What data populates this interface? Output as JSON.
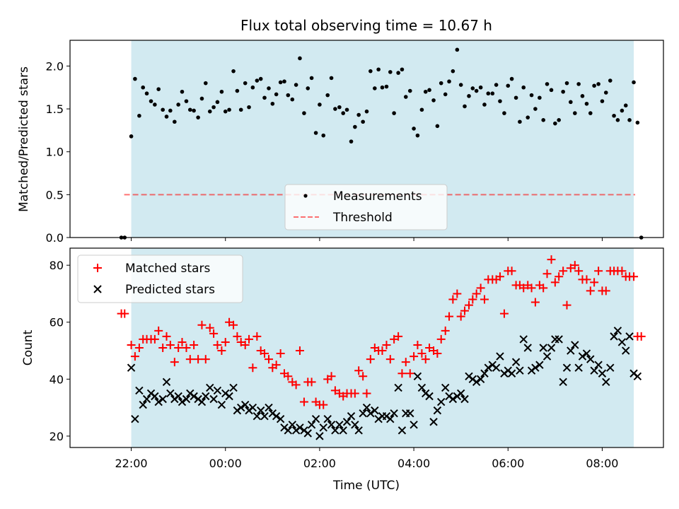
{
  "figure": {
    "title": "Flux total observing time = 10.67 h",
    "xlabel": "Time (UTC)",
    "x_tick_labels": [
      "22:00",
      "00:00",
      "02:00",
      "04:00",
      "06:00",
      "08:00"
    ],
    "x_ticks_hours": [
      22,
      24,
      26,
      28,
      30,
      32
    ],
    "xlim_hours": [
      20.7,
      33.3
    ],
    "observing_window_hours": [
      22.0,
      32.67
    ],
    "colors": {
      "band": "#add8e6",
      "matched": "#ff0000",
      "predicted": "#000000",
      "threshold": "#ff0000",
      "measurement": "#000000"
    }
  },
  "chart_data": [
    {
      "type": "scatter",
      "ylabel": "Matched/Predicted stars",
      "ylim": [
        0,
        2.3
      ],
      "y_ticks": [
        0.0,
        0.5,
        1.0,
        1.5,
        2.0
      ],
      "y_tick_labels": [
        "0.0",
        "0.5",
        "1.0",
        "1.5",
        "2.0"
      ],
      "legend": {
        "placement": "lower center",
        "entries": [
          "Measurements",
          "Threshold"
        ]
      },
      "threshold": {
        "name": "Threshold",
        "value": 0.5,
        "x_range": [
          21.85,
          32.7
        ]
      },
      "series": [
        {
          "name": "Measurements",
          "x": [
            21.79,
            21.86,
            22.0,
            22.08,
            22.17,
            22.25,
            22.33,
            22.42,
            22.5,
            22.58,
            22.67,
            22.75,
            22.83,
            22.92,
            23.0,
            23.08,
            23.17,
            23.25,
            23.33,
            23.42,
            23.5,
            23.58,
            23.67,
            23.75,
            23.83,
            23.92,
            24.0,
            24.08,
            24.17,
            24.25,
            24.33,
            24.42,
            24.5,
            24.58,
            24.67,
            24.75,
            24.83,
            24.92,
            25.0,
            25.08,
            25.17,
            25.25,
            25.33,
            25.42,
            25.5,
            25.58,
            25.67,
            25.75,
            25.83,
            25.92,
            26.0,
            26.08,
            26.17,
            26.25,
            26.33,
            26.42,
            26.5,
            26.58,
            26.67,
            26.75,
            26.83,
            26.92,
            27.0,
            27.08,
            27.17,
            27.25,
            27.33,
            27.42,
            27.5,
            27.58,
            27.67,
            27.75,
            27.83,
            27.92,
            28.0,
            28.08,
            28.17,
            28.25,
            28.33,
            28.42,
            28.5,
            28.58,
            28.67,
            28.75,
            28.83,
            28.92,
            29.0,
            29.08,
            29.17,
            29.25,
            29.33,
            29.42,
            29.5,
            29.58,
            29.67,
            29.75,
            29.83,
            29.92,
            30.0,
            30.08,
            30.17,
            30.25,
            30.33,
            30.42,
            30.5,
            30.58,
            30.67,
            30.75,
            30.83,
            30.92,
            31.0,
            31.08,
            31.17,
            31.25,
            31.33,
            31.42,
            31.5,
            31.58,
            31.67,
            31.75,
            31.83,
            31.92,
            32.0,
            32.08,
            32.17,
            32.25,
            32.33,
            32.42,
            32.5,
            32.58,
            32.67,
            32.75,
            32.83
          ],
          "y": [
            0.0,
            0.0,
            1.18,
            1.85,
            1.42,
            1.75,
            1.68,
            1.59,
            1.55,
            1.73,
            1.49,
            1.41,
            1.48,
            1.35,
            1.55,
            1.7,
            1.59,
            1.49,
            1.48,
            1.4,
            1.62,
            1.8,
            1.47,
            1.52,
            1.58,
            1.7,
            1.47,
            1.49,
            1.94,
            1.71,
            1.49,
            1.8,
            1.52,
            1.75,
            1.83,
            1.85,
            1.63,
            1.74,
            1.56,
            1.67,
            1.81,
            1.82,
            1.66,
            1.61,
            1.78,
            2.09,
            1.45,
            1.74,
            1.86,
            1.22,
            1.55,
            1.19,
            1.66,
            1.86,
            1.5,
            1.52,
            1.45,
            1.49,
            1.12,
            1.29,
            1.43,
            1.35,
            1.47,
            1.94,
            1.74,
            1.96,
            1.75,
            1.76,
            1.93,
            1.45,
            1.92,
            1.96,
            1.64,
            1.71,
            1.27,
            1.19,
            1.49,
            1.7,
            1.72,
            1.6,
            1.3,
            1.8,
            1.67,
            1.82,
            1.94,
            2.19,
            1.78,
            1.53,
            1.65,
            1.74,
            1.71,
            1.75,
            1.55,
            1.68,
            1.68,
            1.78,
            1.59,
            1.45,
            1.77,
            1.85,
            1.63,
            1.35,
            1.75,
            1.4,
            1.66,
            1.5,
            1.63,
            1.37,
            1.79,
            1.72,
            1.33,
            1.37,
            1.7,
            1.8,
            1.58,
            1.45,
            1.79,
            1.65,
            1.56,
            1.45,
            1.77,
            1.79,
            1.59,
            1.69,
            1.83,
            1.42,
            1.37,
            1.48,
            1.54,
            1.37,
            1.81,
            1.34,
            0.0
          ]
        }
      ]
    },
    {
      "type": "scatter",
      "ylabel": "Count",
      "ylim": [
        16,
        86
      ],
      "y_ticks": [
        20,
        40,
        60,
        80
      ],
      "y_tick_labels": [
        "20",
        "40",
        "60",
        "80"
      ],
      "legend": {
        "placement": "upper left",
        "entries": [
          "Matched stars",
          "Predicted stars"
        ]
      },
      "series": [
        {
          "name": "Matched stars",
          "marker": "+",
          "x": [
            21.79,
            21.86,
            22.0,
            22.08,
            22.17,
            22.25,
            22.33,
            22.42,
            22.5,
            22.58,
            22.67,
            22.75,
            22.83,
            22.92,
            23.0,
            23.08,
            23.17,
            23.25,
            23.33,
            23.42,
            23.5,
            23.58,
            23.67,
            23.75,
            23.83,
            23.92,
            24.0,
            24.08,
            24.17,
            24.25,
            24.33,
            24.42,
            24.5,
            24.58,
            24.67,
            24.75,
            24.83,
            24.92,
            25.0,
            25.08,
            25.17,
            25.25,
            25.33,
            25.42,
            25.5,
            25.58,
            25.67,
            25.75,
            25.83,
            25.92,
            26.0,
            26.08,
            26.17,
            26.25,
            26.33,
            26.42,
            26.5,
            26.58,
            26.67,
            26.75,
            26.83,
            26.92,
            27.0,
            27.08,
            27.17,
            27.25,
            27.33,
            27.42,
            27.5,
            27.58,
            27.67,
            27.75,
            27.83,
            27.92,
            28.0,
            28.08,
            28.17,
            28.25,
            28.33,
            28.42,
            28.5,
            28.58,
            28.67,
            28.75,
            28.83,
            28.92,
            29.0,
            29.08,
            29.17,
            29.25,
            29.33,
            29.42,
            29.5,
            29.58,
            29.67,
            29.75,
            29.83,
            29.92,
            30.0,
            30.08,
            30.17,
            30.25,
            30.33,
            30.42,
            30.5,
            30.58,
            30.67,
            30.75,
            30.83,
            30.92,
            31.0,
            31.08,
            31.17,
            31.25,
            31.33,
            31.42,
            31.5,
            31.58,
            31.67,
            31.75,
            31.83,
            31.92,
            32.0,
            32.08,
            32.17,
            32.25,
            32.33,
            32.42,
            32.5,
            32.58,
            32.67,
            32.75,
            32.83
          ],
          "y": [
            63,
            63,
            52,
            48,
            51,
            54,
            54,
            54,
            54,
            57,
            51,
            55,
            52,
            46,
            51,
            53,
            51,
            47,
            52,
            47,
            59,
            47,
            58,
            56,
            52,
            50,
            53,
            60,
            59,
            55,
            53,
            52,
            54,
            44,
            55,
            50,
            49,
            47,
            44,
            45,
            49,
            42,
            41,
            39,
            38,
            50,
            32,
            39,
            39,
            32,
            31,
            31,
            40,
            41,
            36,
            35,
            34,
            35,
            35,
            35,
            43,
            41,
            35,
            47,
            51,
            50,
            50,
            52,
            47,
            54,
            55,
            42,
            46,
            42,
            48,
            52,
            49,
            47,
            51,
            50,
            49,
            54,
            57,
            62,
            68,
            70,
            62,
            64,
            66,
            68,
            70,
            72,
            68,
            75,
            75,
            75,
            76,
            63,
            78,
            78,
            73,
            73,
            72,
            73,
            72,
            67,
            73,
            72,
            77,
            82,
            74,
            76,
            78,
            66,
            79,
            80,
            78,
            75,
            75,
            71,
            74,
            78,
            71,
            71,
            78,
            78,
            78,
            78,
            76,
            76,
            76,
            55,
            55
          ]
        },
        {
          "name": "Predicted stars",
          "marker": "x",
          "x": [
            22.0,
            22.08,
            22.17,
            22.25,
            22.33,
            22.42,
            22.5,
            22.58,
            22.67,
            22.75,
            22.83,
            22.92,
            23.0,
            23.08,
            23.17,
            23.25,
            23.33,
            23.42,
            23.5,
            23.58,
            23.67,
            23.75,
            23.83,
            23.92,
            24.0,
            24.08,
            24.17,
            24.25,
            24.33,
            24.42,
            24.5,
            24.58,
            24.67,
            24.75,
            24.83,
            24.92,
            25.0,
            25.08,
            25.17,
            25.25,
            25.33,
            25.42,
            25.5,
            25.58,
            25.67,
            25.75,
            25.83,
            25.92,
            26.0,
            26.08,
            26.17,
            26.25,
            26.33,
            26.42,
            26.5,
            26.58,
            26.67,
            26.75,
            26.83,
            26.92,
            27.0,
            27.08,
            27.17,
            27.25,
            27.33,
            27.42,
            27.5,
            27.58,
            27.67,
            27.75,
            27.83,
            27.92,
            28.0,
            28.08,
            28.17,
            28.25,
            28.33,
            28.42,
            28.5,
            28.58,
            28.67,
            28.75,
            28.83,
            28.92,
            29.0,
            29.08,
            29.17,
            29.25,
            29.33,
            29.42,
            29.5,
            29.58,
            29.67,
            29.75,
            29.83,
            29.92,
            30.0,
            30.08,
            30.17,
            30.25,
            30.33,
            30.42,
            30.5,
            30.58,
            30.67,
            30.75,
            30.83,
            30.92,
            31.0,
            31.08,
            31.17,
            31.25,
            31.33,
            31.42,
            31.5,
            31.58,
            31.67,
            31.75,
            31.83,
            31.92,
            32.0,
            32.08,
            32.17,
            32.25,
            32.33,
            32.42,
            32.5,
            32.58,
            32.67,
            32.75
          ],
          "y": [
            44,
            26,
            36,
            31,
            33,
            35,
            34,
            32,
            33,
            39,
            35,
            33,
            34,
            32,
            33,
            35,
            34,
            33,
            32,
            34,
            37,
            33,
            36,
            31,
            35,
            34,
            37,
            29,
            30,
            31,
            29,
            30,
            27,
            29,
            27,
            30,
            28,
            27,
            26,
            23,
            22,
            24,
            22,
            23,
            22,
            21,
            24,
            26,
            20,
            23,
            26,
            24,
            22,
            24,
            22,
            25,
            27,
            24,
            22,
            28,
            30,
            28,
            29,
            26,
            27,
            27,
            26,
            28,
            37,
            22,
            28,
            28,
            24,
            41,
            37,
            35,
            34,
            25,
            29,
            32,
            37,
            34,
            33,
            34,
            35,
            33,
            41,
            40,
            39,
            40,
            42,
            44,
            45,
            44,
            48,
            42,
            43,
            42,
            46,
            43,
            54,
            51,
            43,
            44,
            45,
            51,
            48,
            51,
            54,
            54,
            39,
            44,
            50,
            52,
            44,
            48,
            49,
            47,
            43,
            45,
            42,
            39,
            44,
            55,
            57,
            53,
            50,
            55,
            42,
            41
          ]
        }
      ]
    }
  ]
}
